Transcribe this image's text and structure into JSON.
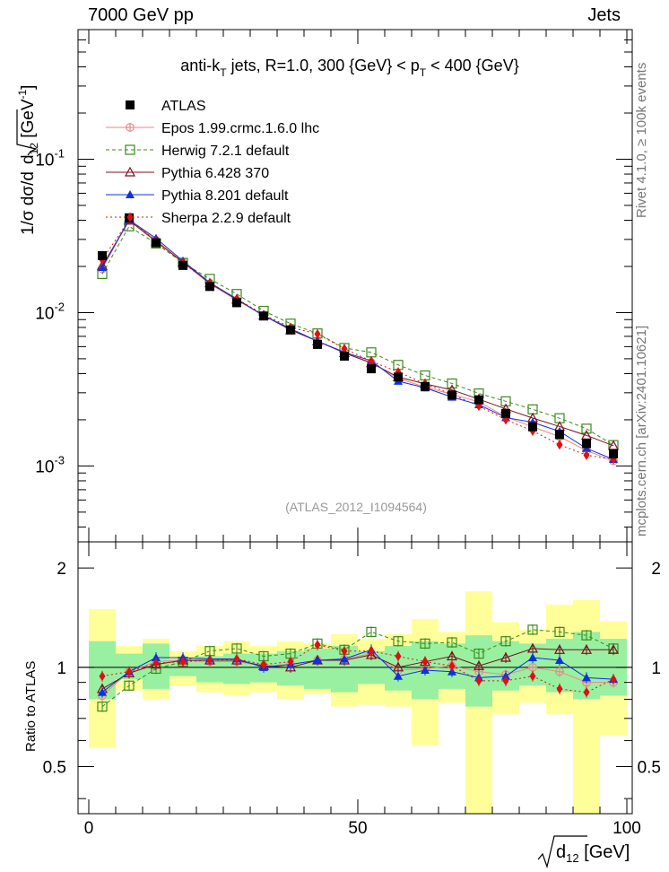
{
  "header": {
    "left": "7000 GeV pp",
    "right": "Jets"
  },
  "side": {
    "rivet": "Rivet 4.1.0, ≥ 100k events",
    "mcplots": "mcplots.cern.ch [arXiv:2401.10621]"
  },
  "chart_data": {
    "type": "scatter",
    "title": "anti-k_T jets, R=1.0, 300 {GeV} < p_T < 400 {GeV}",
    "title_parts": {
      "a": "anti-k",
      "a_sub": "T",
      "b": " jets, R=1.0, 300 {GeV}   < p",
      "b_sub": "T",
      "c": " < 400 {GeV}"
    },
    "analysis_label": "(ATLAS_2012_I1094564)",
    "xlabel": "√d12 [GeV]",
    "xlabel_parts": {
      "main": "d",
      "sub": "12",
      "unit": " [GeV]"
    },
    "ylabel": "1/σ dσ/d√d12 [GeV⁻¹]",
    "ylabel_parts": {
      "pre": "1/σ dσ/d",
      "radicand": "d",
      "sub": "12",
      "unit": " [GeV",
      "sup": "-1",
      "close": "]"
    },
    "ratio_ylabel": "Ratio to ATLAS",
    "x_ticks": [
      "0",
      "50",
      "100"
    ],
    "y_ticks": [
      "10^-1",
      "10^-2",
      "10^-3"
    ],
    "ratio_ticks": [
      "2",
      "1",
      "0.5"
    ],
    "xlim": [
      -2,
      101
    ],
    "ylim": [
      0.00032,
      0.7
    ],
    "ratio_ylim": [
      0.36,
      2.4
    ],
    "scale": {
      "y": "log",
      "ratio_y": "log"
    },
    "x": [
      2.5,
      7.5,
      12.5,
      17.5,
      22.5,
      27.5,
      32.5,
      37.5,
      42.5,
      47.5,
      52.5,
      57.5,
      62.5,
      67.5,
      72.5,
      77.5,
      82.5,
      87.5,
      92.5,
      97.5
    ],
    "data": {
      "name": "ATLAS",
      "values": [
        0.0235,
        0.0415,
        0.0285,
        0.0203,
        0.0148,
        0.0116,
        0.0095,
        0.0077,
        0.0062,
        0.0052,
        0.0043,
        0.0038,
        0.0033,
        0.0029,
        0.0027,
        0.0022,
        0.0018,
        0.0016,
        0.0014,
        0.0012
      ]
    },
    "band": {
      "half_width": 2.5,
      "inner": [
        [
          0.8,
          1.2
        ],
        [
          0.92,
          1.1
        ],
        [
          0.86,
          1.18
        ],
        [
          0.94,
          1.06
        ],
        [
          0.9,
          1.08
        ],
        [
          0.89,
          1.1
        ],
        [
          0.9,
          1.1
        ],
        [
          0.88,
          1.12
        ],
        [
          0.86,
          1.14
        ],
        [
          0.84,
          1.16
        ],
        [
          0.89,
          1.12
        ],
        [
          0.85,
          1.16
        ],
        [
          0.8,
          1.2
        ],
        [
          0.86,
          1.18
        ],
        [
          0.76,
          1.25
        ],
        [
          0.85,
          1.2
        ],
        [
          0.88,
          1.18
        ],
        [
          0.84,
          1.22
        ],
        [
          0.8,
          1.28
        ],
        [
          0.82,
          1.22
        ]
      ],
      "outer": [
        [
          0.57,
          1.5
        ],
        [
          0.85,
          1.16
        ],
        [
          0.8,
          1.22
        ],
        [
          0.88,
          1.12
        ],
        [
          0.84,
          1.16
        ],
        [
          0.82,
          1.2
        ],
        [
          0.84,
          1.16
        ],
        [
          0.8,
          1.2
        ],
        [
          0.83,
          1.18
        ],
        [
          0.76,
          1.26
        ],
        [
          0.77,
          1.22
        ],
        [
          0.76,
          1.26
        ],
        [
          0.58,
          1.4
        ],
        [
          0.78,
          1.28
        ],
        [
          0.36,
          1.7
        ],
        [
          0.72,
          1.37
        ],
        [
          0.78,
          1.3
        ],
        [
          0.72,
          1.55
        ],
        [
          0.36,
          1.6
        ],
        [
          0.62,
          1.38
        ]
      ]
    },
    "series": [
      {
        "name": "Epos 1.99.crmc.1.6.0 lhc",
        "color": "#e88a8a",
        "marker": "cross-circle",
        "dash": "",
        "ratio": [
          0.82,
          0.97,
          1.04,
          1.05,
          1.04,
          1.04,
          1.01,
          1.02,
          1.05,
          1.06,
          1.1,
          0.98,
          0.99,
          1.01,
          0.97,
          0.95,
          1.0,
          0.97,
          0.9,
          0.9
        ]
      },
      {
        "name": "Herwig 7.2.1 default",
        "color": "#3a8a1a",
        "marker": "open-square",
        "dash": "4,3",
        "ratio": [
          0.76,
          0.88,
          0.99,
          1.04,
          1.12,
          1.14,
          1.08,
          1.1,
          1.18,
          1.13,
          1.28,
          1.2,
          1.18,
          1.19,
          1.1,
          1.2,
          1.3,
          1.28,
          1.25,
          1.14
        ]
      },
      {
        "name": "Pythia 6.428 370",
        "color": "#7a1020",
        "marker": "open-triangle",
        "dash": "",
        "ratio": [
          0.86,
          0.96,
          1.02,
          1.05,
          1.05,
          1.05,
          1.01,
          1.0,
          1.05,
          1.05,
          1.09,
          1.0,
          1.04,
          1.08,
          1.01,
          1.07,
          1.14,
          1.13,
          1.13,
          1.13
        ]
      },
      {
        "name": "Pythia 8.201 default",
        "color": "#1030e0",
        "marker": "filled-triangle",
        "dash": "",
        "ratio": [
          0.84,
          0.97,
          1.07,
          1.07,
          1.06,
          1.06,
          1.0,
          1.02,
          1.05,
          1.06,
          1.13,
          0.94,
          0.98,
          0.97,
          0.93,
          0.94,
          1.07,
          1.05,
          0.93,
          0.92
        ]
      },
      {
        "name": "Sherpa 2.2.9 default",
        "color": "#e01010",
        "marker": "filled-diamond",
        "dash": "2,3",
        "ratio": [
          0.94,
          0.97,
          1.03,
          1.04,
          1.05,
          1.06,
          1.02,
          1.04,
          1.17,
          1.12,
          1.12,
          1.08,
          1.04,
          1.01,
          0.91,
          0.91,
          0.94,
          0.86,
          0.84,
          0.92
        ]
      }
    ]
  }
}
